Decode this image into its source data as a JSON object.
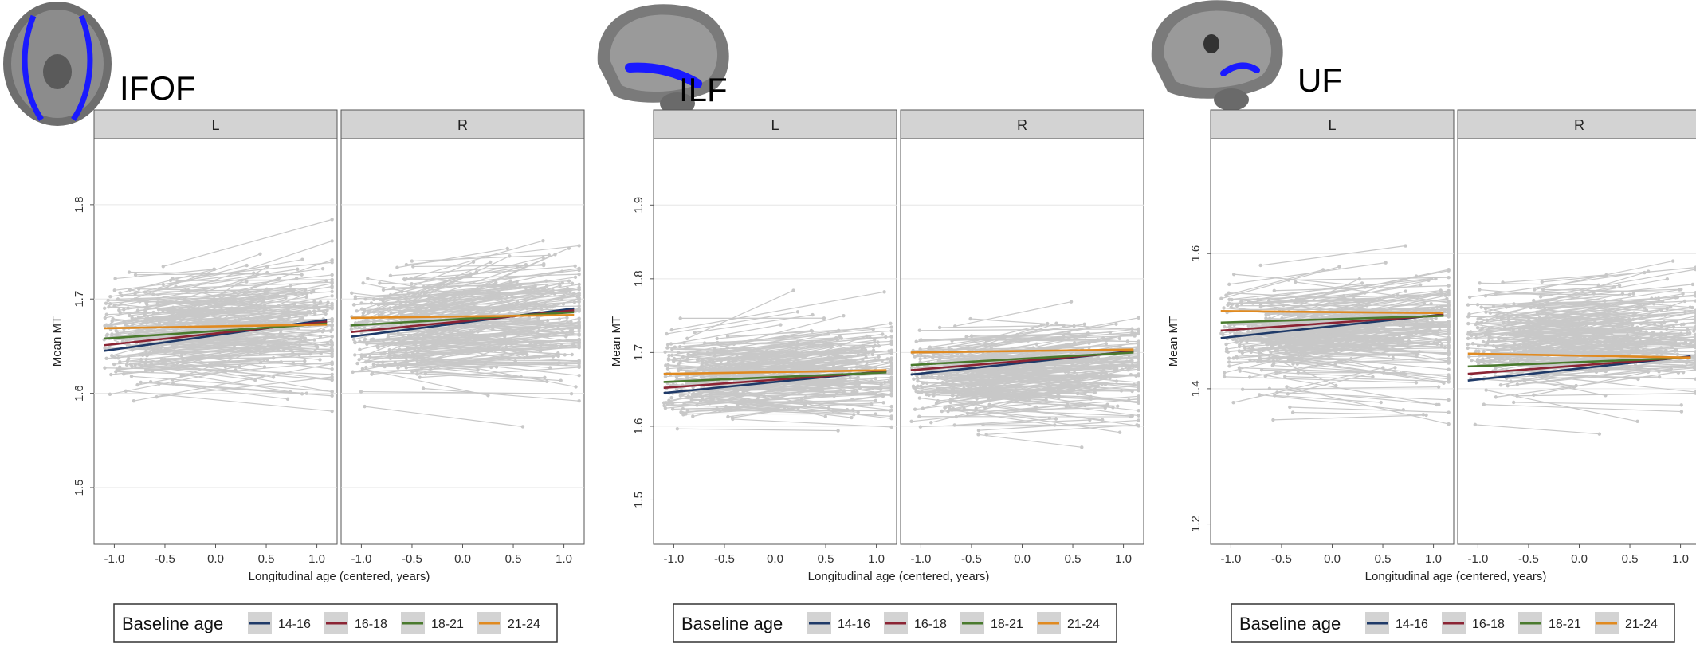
{
  "figure": {
    "legend_title": "Baseline age",
    "legend_items": [
      {
        "label": "14-16",
        "color": "#1f3a68"
      },
      {
        "label": "16-18",
        "color": "#8b2434"
      },
      {
        "label": "18-21",
        "color": "#4a7a2e"
      },
      {
        "label": "21-24",
        "color": "#e08a20"
      }
    ],
    "point_color": "#c8c8c8",
    "strip_fill": "#d3d3d3",
    "brain_icons": [
      "brain-axial-ifof-icon",
      "brain-sagittal-ilf-icon",
      "brain-sagittal-uf-icon"
    ]
  },
  "chart_data": [
    {
      "type": "line",
      "title": "IFOF",
      "xlabel": "Longitudinal age (centered, years)",
      "ylabel": "Mean MT",
      "facets": [
        "L",
        "R"
      ],
      "xlim": [
        -1.2,
        1.2
      ],
      "ylim": [
        1.44,
        1.87
      ],
      "xticks": [
        -1.0,
        -0.5,
        0.0,
        0.5,
        1.0
      ],
      "xtick_labels": [
        "-1.0",
        "-0.5",
        "0.0",
        "0.5",
        "1.0"
      ],
      "yticks": [
        1.5,
        1.6,
        1.7,
        1.8
      ],
      "ytick_labels": [
        "1.5",
        "1.6",
        "1.7",
        "1.8"
      ],
      "raw_points": {
        "subjects_per_facet": 230,
        "center": 1.665,
        "spread": 0.045,
        "range": [
          1.46,
          1.85
        ]
      },
      "series": [
        {
          "name": "14-16",
          "facet": "L",
          "x": [
            -1.1,
            1.1
          ],
          "y": [
            1.645,
            1.678
          ]
        },
        {
          "name": "16-18",
          "facet": "L",
          "x": [
            -1.1,
            1.1
          ],
          "y": [
            1.651,
            1.676
          ]
        },
        {
          "name": "18-21",
          "facet": "L",
          "x": [
            -1.1,
            1.1
          ],
          "y": [
            1.658,
            1.674
          ]
        },
        {
          "name": "21-24",
          "facet": "L",
          "x": [
            -1.1,
            1.1
          ],
          "y": [
            1.669,
            1.673
          ]
        },
        {
          "name": "14-16",
          "facet": "R",
          "x": [
            -1.1,
            1.1
          ],
          "y": [
            1.66,
            1.69
          ]
        },
        {
          "name": "16-18",
          "facet": "R",
          "x": [
            -1.1,
            1.1
          ],
          "y": [
            1.665,
            1.688
          ]
        },
        {
          "name": "18-21",
          "facet": "R",
          "x": [
            -1.1,
            1.1
          ],
          "y": [
            1.672,
            1.686
          ]
        },
        {
          "name": "21-24",
          "facet": "R",
          "x": [
            -1.1,
            1.1
          ],
          "y": [
            1.68,
            1.683
          ]
        }
      ]
    },
    {
      "type": "line",
      "title": "ILF",
      "xlabel": "Longitudinal age (centered, years)",
      "ylabel": "Mean MT",
      "facets": [
        "L",
        "R"
      ],
      "xlim": [
        -1.2,
        1.2
      ],
      "ylim": [
        1.44,
        1.99
      ],
      "xticks": [
        -1.0,
        -0.5,
        0.0,
        0.5,
        1.0
      ],
      "xtick_labels": [
        "-1.0",
        "-0.5",
        "0.0",
        "0.5",
        "1.0"
      ],
      "yticks": [
        1.5,
        1.6,
        1.7,
        1.8,
        1.9
      ],
      "ytick_labels": [
        "1.5",
        "1.6",
        "1.7",
        "1.8",
        "1.9"
      ],
      "raw_points": {
        "subjects_per_facet": 230,
        "center": 1.665,
        "spread": 0.045,
        "range": [
          1.45,
          1.96
        ]
      },
      "series": [
        {
          "name": "14-16",
          "facet": "L",
          "x": [
            -1.1,
            1.1
          ],
          "y": [
            1.645,
            1.675
          ]
        },
        {
          "name": "16-18",
          "facet": "L",
          "x": [
            -1.1,
            1.1
          ],
          "y": [
            1.652,
            1.674
          ]
        },
        {
          "name": "18-21",
          "facet": "L",
          "x": [
            -1.1,
            1.1
          ],
          "y": [
            1.66,
            1.673
          ]
        },
        {
          "name": "21-24",
          "facet": "L",
          "x": [
            -1.1,
            1.1
          ],
          "y": [
            1.671,
            1.676
          ]
        },
        {
          "name": "14-16",
          "facet": "R",
          "x": [
            -1.1,
            1.1
          ],
          "y": [
            1.67,
            1.702
          ]
        },
        {
          "name": "16-18",
          "facet": "R",
          "x": [
            -1.1,
            1.1
          ],
          "y": [
            1.676,
            1.701
          ]
        },
        {
          "name": "18-21",
          "facet": "R",
          "x": [
            -1.1,
            1.1
          ],
          "y": [
            1.683,
            1.7
          ]
        },
        {
          "name": "21-24",
          "facet": "R",
          "x": [
            -1.1,
            1.1
          ],
          "y": [
            1.7,
            1.704
          ]
        }
      ]
    },
    {
      "type": "line",
      "title": "UF",
      "xlabel": "Longitudinal age (centered, years)",
      "ylabel": "Mean MT",
      "facets": [
        "L",
        "R"
      ],
      "xlim": [
        -1.2,
        1.2
      ],
      "ylim": [
        1.17,
        1.77
      ],
      "xticks": [
        -1.0,
        -0.5,
        0.0,
        0.5,
        1.0
      ],
      "xtick_labels": [
        "-1.0",
        "-0.5",
        "0.0",
        "0.5",
        "1.0"
      ],
      "yticks": [
        1.2,
        1.4,
        1.6
      ],
      "ytick_labels": [
        "1.2",
        "1.4",
        "1.6"
      ],
      "raw_points": {
        "subjects_per_facet": 230,
        "center": 1.47,
        "spread": 0.06,
        "range": [
          1.18,
          1.74
        ]
      },
      "series": [
        {
          "name": "14-16",
          "facet": "L",
          "x": [
            -1.1,
            1.1
          ],
          "y": [
            1.475,
            1.51
          ]
        },
        {
          "name": "16-18",
          "facet": "L",
          "x": [
            -1.1,
            1.1
          ],
          "y": [
            1.486,
            1.509
          ]
        },
        {
          "name": "18-21",
          "facet": "L",
          "x": [
            -1.1,
            1.1
          ],
          "y": [
            1.498,
            1.508
          ]
        },
        {
          "name": "21-24",
          "facet": "L",
          "x": [
            -1.1,
            1.1
          ],
          "y": [
            1.515,
            1.512
          ]
        },
        {
          "name": "14-16",
          "facet": "R",
          "x": [
            -1.1,
            1.1
          ],
          "y": [
            1.412,
            1.448
          ]
        },
        {
          "name": "16-18",
          "facet": "R",
          "x": [
            -1.1,
            1.1
          ],
          "y": [
            1.422,
            1.447
          ]
        },
        {
          "name": "18-21",
          "facet": "R",
          "x": [
            -1.1,
            1.1
          ],
          "y": [
            1.433,
            1.446
          ]
        },
        {
          "name": "21-24",
          "facet": "R",
          "x": [
            -1.1,
            1.1
          ],
          "y": [
            1.452,
            1.446
          ]
        }
      ]
    }
  ]
}
